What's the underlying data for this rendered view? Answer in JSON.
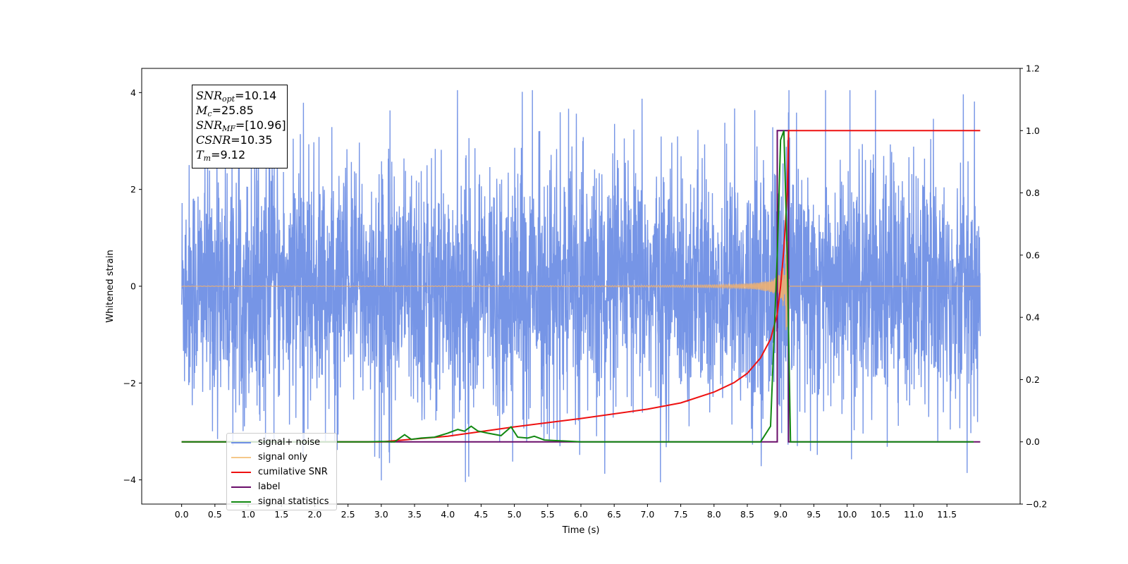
{
  "chart_data": {
    "type": "line",
    "xlabel": "Time (s)",
    "ylabel": "Whitened strain",
    "xlim": [
      -0.6,
      12.6
    ],
    "ylim": [
      -4.5,
      4.5
    ],
    "y2lim": [
      -0.2,
      1.2
    ],
    "x_ticks": [
      "0.0",
      "0.5",
      "1.0",
      "1.5",
      "2.0",
      "2.5",
      "3.0",
      "3.5",
      "4.0",
      "4.5",
      "5.0",
      "5.5",
      "6.0",
      "6.5",
      "7.0",
      "7.5",
      "8.0",
      "8.5",
      "9.0",
      "9.5",
      "10.0",
      "10.5",
      "11.0",
      "11.5"
    ],
    "y_ticks": [
      -4,
      -2,
      0,
      2,
      4
    ],
    "y_tick_labels": [
      "−4",
      "−2",
      "0",
      "2",
      "4"
    ],
    "y2_ticks": [
      "−0.2",
      "0.0",
      "0.2",
      "0.4",
      "0.6",
      "0.8",
      "1.0",
      "1.2"
    ],
    "y2_tick_values": [
      -0.2,
      0.0,
      0.2,
      0.4,
      0.6,
      0.8,
      1.0,
      1.2
    ],
    "grid": false,
    "legend_position": "bottom-left",
    "annotation": {
      "snr_opt": "10.14",
      "mc": "25.85",
      "snr_mf": "[10.96]",
      "csnr": "10.35",
      "tm": "9.12"
    },
    "series": [
      {
        "name": "signal+ noise",
        "color": "#6f8fe5",
        "axis": "left",
        "description_range": [
          0.0,
          12.0
        ],
        "noise_amplitude_typical": 1.3,
        "noise_peak": 4.05
      },
      {
        "name": "signal only",
        "color": "#f0b070",
        "axis": "left",
        "x_start": 0.0,
        "x_merger": 9.12,
        "x_end": 12.0,
        "peak_amplitude": 1.1
      },
      {
        "name": "cumilative SNR",
        "color": "#ee1111",
        "axis": "right",
        "x": [
          0.0,
          3.0,
          4.0,
          5.0,
          6.0,
          6.5,
          7.0,
          7.5,
          8.0,
          8.3,
          8.5,
          8.7,
          8.85,
          8.95,
          9.0,
          9.05,
          9.1,
          9.12,
          12.0
        ],
        "values": [
          0.0,
          0.0,
          0.018,
          0.048,
          0.075,
          0.09,
          0.105,
          0.125,
          0.16,
          0.19,
          0.22,
          0.27,
          0.33,
          0.41,
          0.5,
          0.62,
          0.8,
          1.0,
          1.0
        ]
      },
      {
        "name": "label",
        "color": "#6a0d6a",
        "axis": "right",
        "x": [
          0.0,
          8.95,
          8.95,
          9.12,
          9.12,
          12.0
        ],
        "values": [
          0.0,
          0.0,
          1.0,
          1.0,
          0.0,
          0.0
        ]
      },
      {
        "name": "signal statistics",
        "color": "#118811",
        "axis": "right",
        "x": [
          0.0,
          2.8,
          3.0,
          3.2,
          3.35,
          3.45,
          3.6,
          3.8,
          4.0,
          4.15,
          4.25,
          4.35,
          4.45,
          4.6,
          4.8,
          4.95,
          5.05,
          5.2,
          5.3,
          5.45,
          5.6,
          5.8,
          6.0,
          8.7,
          8.85,
          8.95,
          9.0,
          9.05,
          9.1,
          9.15,
          9.2,
          11.9
        ],
        "values": [
          0.0,
          0.0,
          0.001,
          0.0,
          0.023,
          0.008,
          0.012,
          0.015,
          0.028,
          0.04,
          0.034,
          0.05,
          0.035,
          0.028,
          0.02,
          0.048,
          0.015,
          0.012,
          0.018,
          0.006,
          0.004,
          0.002,
          0.0,
          0.0,
          0.05,
          0.6,
          0.97,
          1.0,
          0.6,
          0.0,
          0.0,
          0.0
        ]
      }
    ]
  }
}
